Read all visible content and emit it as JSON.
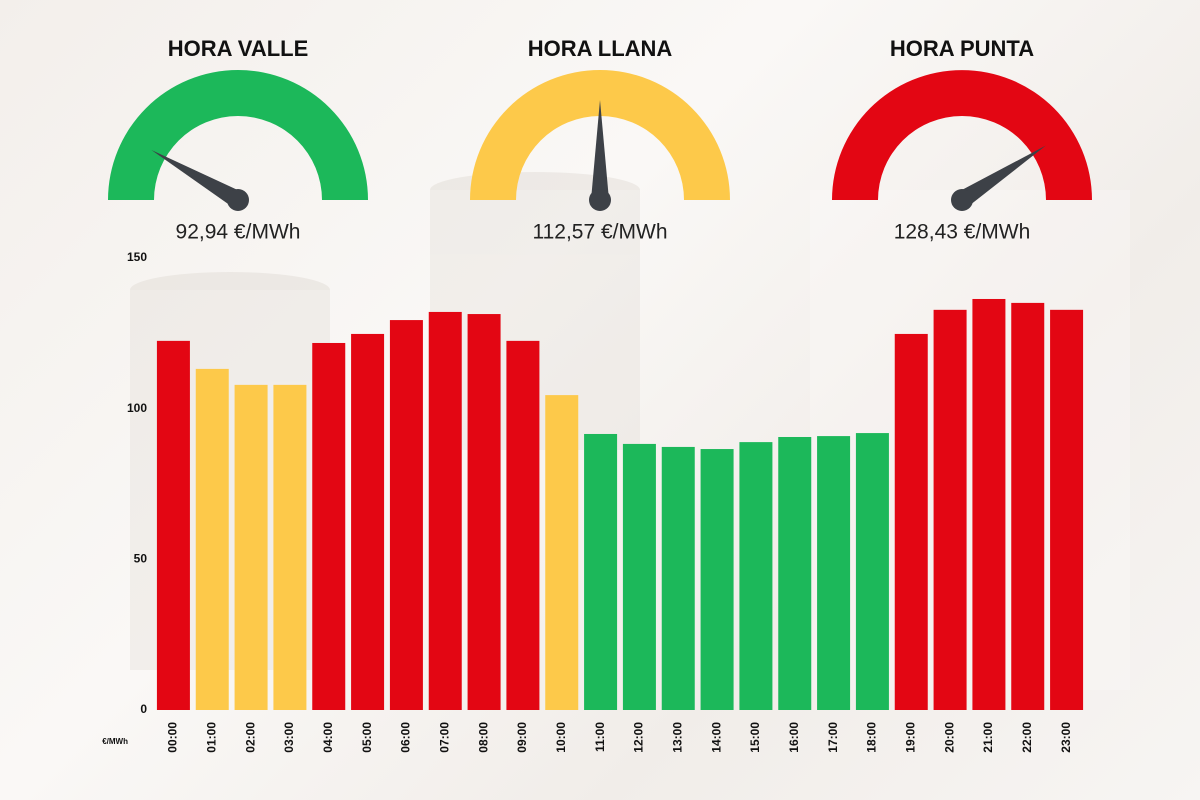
{
  "chart_data": [
    {
      "type": "gauge",
      "gauges": [
        {
          "title": "HORA VALLE",
          "value": 92.94,
          "value_label": "92,94 €/MWh",
          "color": "#1cb85a"
        },
        {
          "title": "HORA LLANA",
          "value": 112.57,
          "value_label": "112,57 €/MWh",
          "color": "#fdc94a"
        },
        {
          "title": "HORA PUNTA",
          "value": 128.43,
          "value_label": "128,43 €/MWh",
          "color": "#e30613"
        }
      ]
    },
    {
      "type": "bar",
      "y_label": "€/MWh",
      "categories": [
        "00:00",
        "01:00",
        "02:00",
        "03:00",
        "04:00",
        "05:00",
        "06:00",
        "07:00",
        "08:00",
        "09:00",
        "10:00",
        "11:00",
        "12:00",
        "13:00",
        "14:00",
        "15:00",
        "16:00",
        "17:00",
        "18:00",
        "19:00",
        "20:00",
        "21:00",
        "22:00",
        "23:00"
      ],
      "values": [
        122.5,
        113.2,
        107.9,
        107.9,
        121.8,
        124.8,
        129.4,
        132.1,
        131.4,
        122.5,
        104.5,
        91.6,
        88.3,
        87.3,
        86.6,
        88.9,
        90.6,
        90.9,
        91.9,
        124.8,
        132.8,
        136.4,
        135.1,
        132.8
      ],
      "colors": [
        "#e30613",
        "#fdc94a",
        "#fdc94a",
        "#fdc94a",
        "#e30613",
        "#e30613",
        "#e30613",
        "#e30613",
        "#e30613",
        "#e30613",
        "#fdc94a",
        "#1cb85a",
        "#1cb85a",
        "#1cb85a",
        "#1cb85a",
        "#1cb85a",
        "#1cb85a",
        "#1cb85a",
        "#1cb85a",
        "#e30613",
        "#e30613",
        "#e30613",
        "#e30613",
        "#e30613"
      ],
      "ylim": [
        0,
        150
      ],
      "yticks": [
        0,
        50,
        100,
        150
      ],
      "grid": false
    }
  ]
}
